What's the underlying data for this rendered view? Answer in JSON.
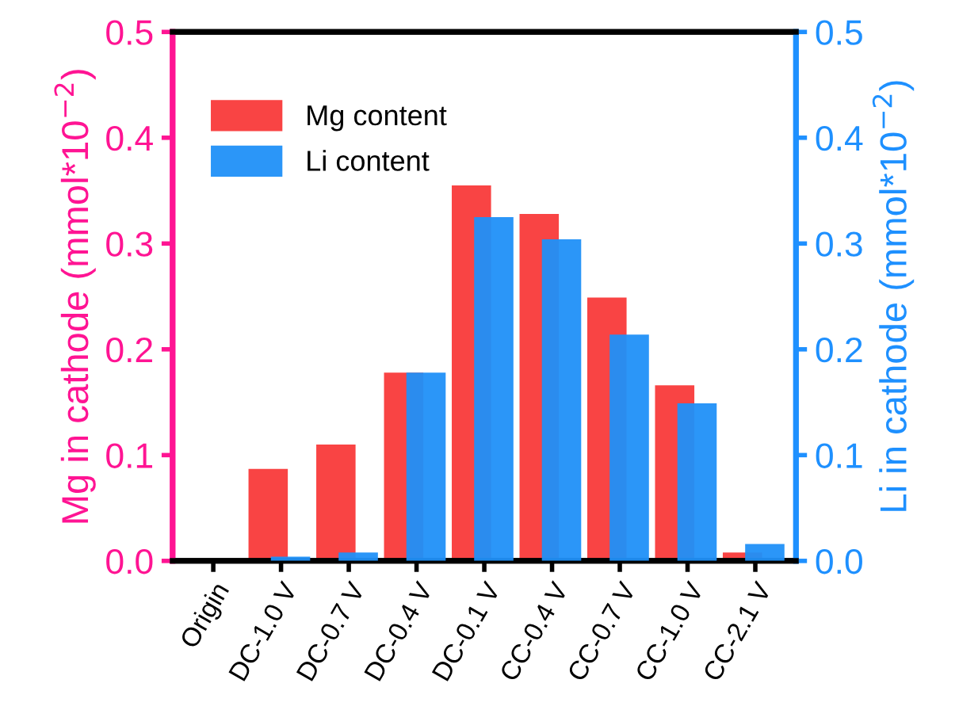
{
  "chart_data": {
    "type": "bar",
    "categories": [
      "Origin",
      "DC-1.0 V",
      "DC-0.7 V",
      "DC-0.4 V",
      "DC-0.1 V",
      "CC-0.4 V",
      "CC-0.7 V",
      "CC-1.0 V",
      "CC-2.1 V"
    ],
    "series": [
      {
        "name": "Mg content",
        "color": "#f83030",
        "values": [
          0,
          0.087,
          0.11,
          0.178,
          0.355,
          0.328,
          0.249,
          0.166,
          0.008
        ]
      },
      {
        "name": "Li content",
        "color": "#2090f8",
        "axis": "y2",
        "values": [
          0,
          0.004,
          0.008,
          0.178,
          0.325,
          0.304,
          0.214,
          0.149,
          0.016
        ]
      }
    ],
    "ylabel": "Mg in cathode (mmol*10$^{−2}$)",
    "y2label": "Li in cathode (mmol*10$^{−2}$)",
    "ylim": [
      0,
      0.5
    ],
    "yticks": [
      {
        "value": 0,
        "label": "0.0"
      },
      0.1,
      0.2,
      0.3,
      0.4,
      0.5
    ],
    "y2lim": [
      0,
      0.5
    ],
    "y2ticks": [
      {
        "value": 0,
        "label": "0.0"
      },
      0.1,
      0.2,
      0.3,
      0.4,
      0.5
    ],
    "legend": "top left",
    "grid": false
  }
}
